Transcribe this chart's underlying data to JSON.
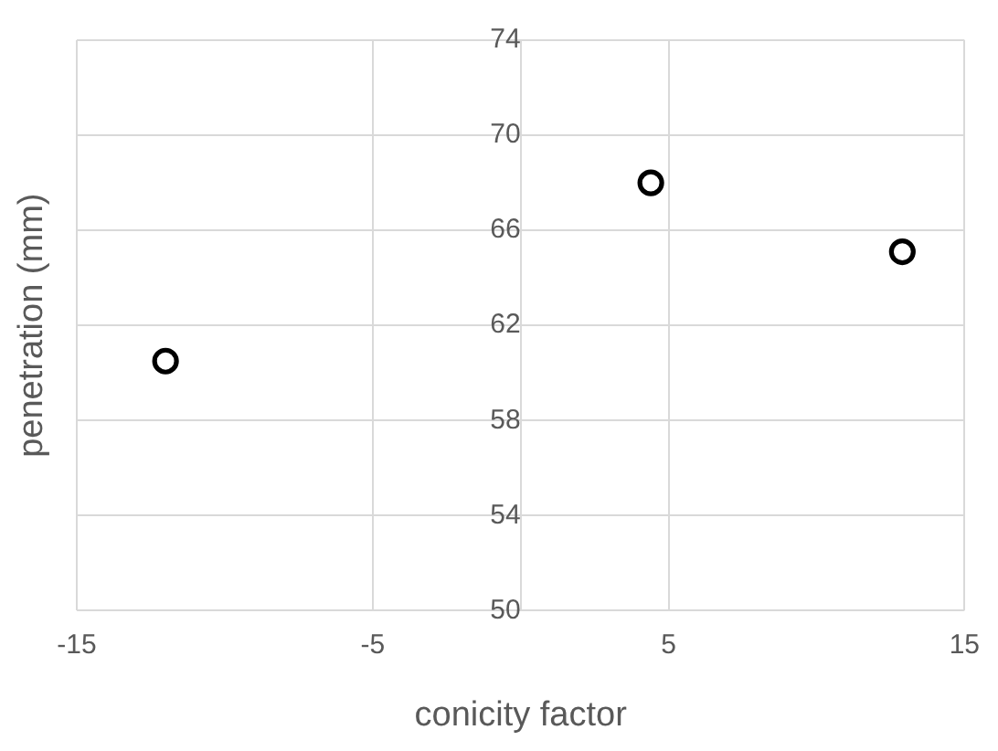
{
  "chart_data": {
    "type": "scatter",
    "xlabel": "conicity factor",
    "ylabel": "penetration (mm)",
    "x": [
      -12,
      4.4,
      12.9
    ],
    "series": [
      {
        "color": "#000000",
        "values": [
          60.5,
          68,
          65.1
        ]
      }
    ],
    "xlim": [
      -15,
      15
    ],
    "xticks": [
      -15,
      -5,
      5,
      15
    ],
    "ylim": [
      50,
      74
    ],
    "yticks": [
      50,
      54,
      58,
      62,
      66,
      70,
      74
    ],
    "grid": true,
    "marker": "circle",
    "legend": false
  }
}
